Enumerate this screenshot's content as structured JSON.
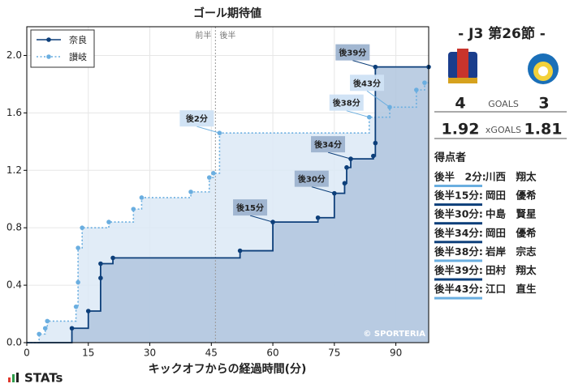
{
  "chart_data": {
    "type": "step",
    "title": "ゴール期待値",
    "x_label": "キックオフからの経過時間(分)",
    "xlim": [
      0,
      98
    ],
    "xticks": [
      0,
      15,
      30,
      45,
      60,
      75,
      90
    ],
    "ylim": [
      0,
      2.2
    ],
    "yticks": [
      {
        "value": 0,
        "label": "0.0"
      },
      {
        "value": 0.4,
        "label": "0.4"
      },
      {
        "value": 0.8,
        "label": "0.8"
      },
      {
        "value": 1.2,
        "label": "1.2"
      },
      {
        "value": 1.6,
        "label": "1.6"
      },
      {
        "value": 2,
        "label": "2.0"
      }
    ],
    "grid": true,
    "legend": "upper left",
    "halftime": {
      "x": 46,
      "labels": [
        "前半",
        "後半"
      ]
    },
    "watermark": "© SPORTERIA",
    "series": [
      {
        "name": "奈良",
        "color": "#0d3f7a",
        "fill": "#b0c6de",
        "style": "solid",
        "x": [
          11,
          15,
          18,
          18,
          21,
          52,
          60,
          71,
          75,
          77.5,
          78,
          79,
          84.5,
          85,
          85,
          98
        ],
        "values": [
          0.1,
          0.22,
          0.45,
          0.55,
          0.59,
          0.64,
          0.84,
          0.87,
          1.04,
          1.11,
          1.22,
          1.28,
          1.3,
          1.39,
          1.92,
          1.92
        ],
        "annotations": [
          null,
          null,
          null,
          null,
          null,
          null,
          "後15分",
          null,
          "後30分",
          null,
          null,
          "後34分",
          null,
          null,
          "後39分",
          null
        ]
      },
      {
        "name": "讃岐",
        "color": "#6aaee0",
        "fill": "#dce9f6",
        "style": "dotted",
        "x": [
          3,
          4.5,
          5,
          12,
          12.5,
          12.5,
          13.5,
          20,
          26,
          28,
          40,
          44.5,
          45.5,
          47,
          83.5,
          88.5,
          95,
          97
        ],
        "values": [
          0.06,
          0.1,
          0.15,
          0.25,
          0.42,
          0.66,
          0.8,
          0.84,
          0.93,
          1.01,
          1.05,
          1.15,
          1.18,
          1.46,
          1.57,
          1.64,
          1.76,
          1.81
        ],
        "annotations": [
          null,
          null,
          null,
          null,
          null,
          null,
          null,
          null,
          null,
          null,
          null,
          null,
          null,
          "後2分",
          "後38分",
          "後43分",
          null,
          null
        ]
      }
    ]
  },
  "match": {
    "title": "-  J3 第26節  -",
    "home_goals": 4,
    "away_goals": 3,
    "goals_label": "GOALS",
    "home_xg": 1.92,
    "away_xg": 1.81,
    "xg_label": "xGOALS"
  },
  "scorers": {
    "title": "得点者",
    "items": [
      {
        "time": "後半　2分:",
        "name": "川西　翔太",
        "color": "#6aaee0"
      },
      {
        "time": "後半15分:",
        "name": "岡田　優希",
        "color": "#0d3f7a"
      },
      {
        "time": "後半30分:",
        "name": "中島　賢星",
        "color": "#0d3f7a"
      },
      {
        "time": "後半34分:",
        "name": "岡田　優希",
        "color": "#0d3f7a"
      },
      {
        "time": "後半38分:",
        "name": "岩岸　宗志",
        "color": "#6aaee0"
      },
      {
        "time": "後半39分:",
        "name": "田村　翔太",
        "color": "#0d3f7a"
      },
      {
        "time": "後半43分:",
        "name": "江口　直生",
        "color": "#6aaee0"
      }
    ]
  },
  "brand": "STATs"
}
